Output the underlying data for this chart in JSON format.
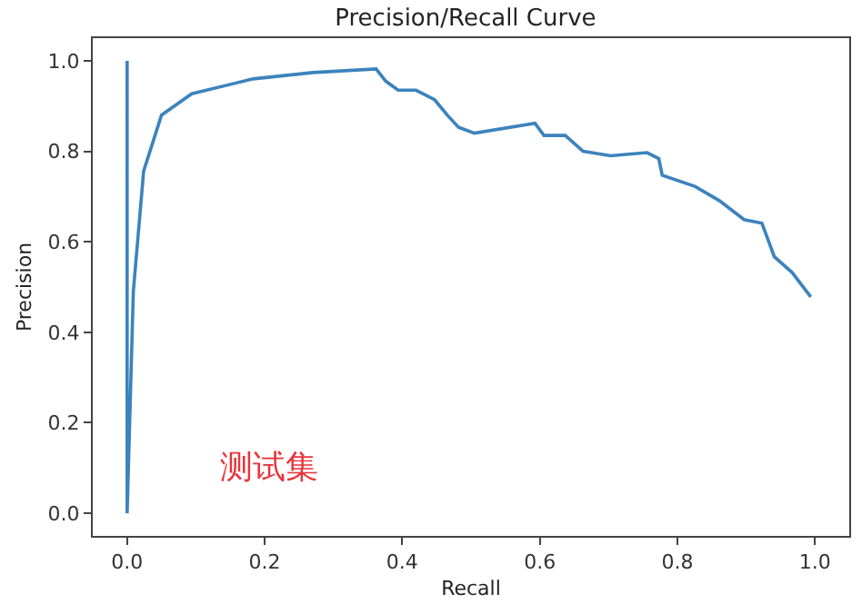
{
  "chart_data": {
    "type": "line",
    "title": "Precision/Recall Curve",
    "xlabel": "Recall",
    "ylabel": "Precision",
    "x": [
      0,
      0,
      0.009,
      0.024,
      0.05,
      0.094,
      0.183,
      0.27,
      0.362,
      0.376,
      0.394,
      0.42,
      0.447,
      0.466,
      0.482,
      0.505,
      0.593,
      0.606,
      0.637,
      0.663,
      0.703,
      0.756,
      0.773,
      0.778,
      0.826,
      0.861,
      0.897,
      0.923,
      0.941,
      0.967,
      0.994
    ],
    "series": [
      {
        "color": "#3b83bd",
        "values": [
          1.0,
          0,
          0.49,
          0.756,
          0.88,
          0.927,
          0.96,
          0.974,
          0.982,
          0.955,
          0.935,
          0.935,
          0.914,
          0.879,
          0.853,
          0.84,
          0.862,
          0.835,
          0.835,
          0.8,
          0.79,
          0.797,
          0.784,
          0.747,
          0.722,
          0.691,
          0.649,
          0.641,
          0.567,
          0.532,
          0.478
        ]
      }
    ],
    "xlim": [
      -0.05,
      1.05
    ],
    "ylim": [
      -0.05,
      1.05
    ],
    "xticks": [
      {
        "value": 0,
        "label": "0.0"
      },
      0.2,
      0.4,
      0.6,
      0.8,
      {
        "value": 1,
        "label": "1.0"
      }
    ],
    "yticks": [
      {
        "value": 0,
        "label": "0.0"
      },
      0.2,
      0.4,
      0.6,
      0.8,
      {
        "value": 1,
        "label": "1.0"
      }
    ],
    "legend": false,
    "marker": "none",
    "line_style": "solid",
    "annotations": [
      "测试集"
    ]
  }
}
